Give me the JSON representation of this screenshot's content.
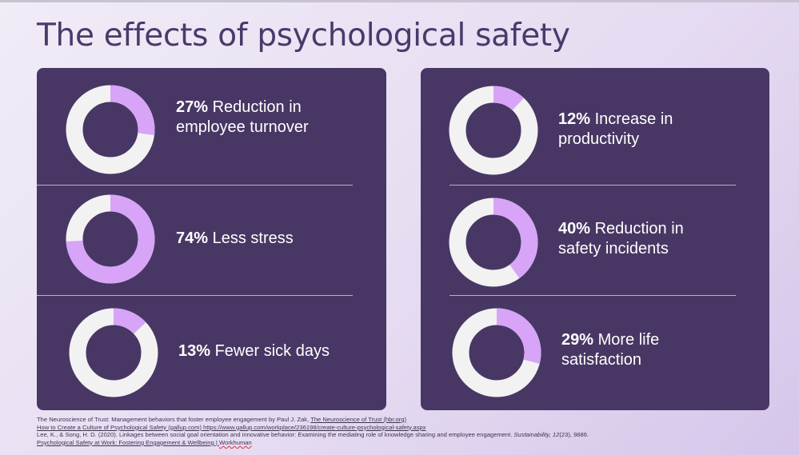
{
  "title": "The effects of psychological safety",
  "colors": {
    "panel": "#483764",
    "ring_bg": "#f2f2f2",
    "ring_fill": "#d7a4f8"
  },
  "chart_data": [
    {
      "type": "pie",
      "subtype": "donut",
      "value_pct": 27,
      "center_label": "27%",
      "highlight": "27%",
      "text": " Reduction in employee turnover"
    },
    {
      "type": "pie",
      "subtype": "donut",
      "value_pct": 74,
      "center_label": "74%",
      "highlight": "74%",
      "text": " Less stress"
    },
    {
      "type": "pie",
      "subtype": "donut",
      "value_pct": 13,
      "center_label": "13%",
      "highlight": "13%",
      "text": " Fewer sick days"
    },
    {
      "type": "pie",
      "subtype": "donut",
      "value_pct": 12,
      "center_label": "12%",
      "highlight": "12%",
      "text": " Increase in productivity"
    },
    {
      "type": "pie",
      "subtype": "donut",
      "value_pct": 40,
      "center_label": "40%",
      "highlight": "40%",
      "text": " Reduction in safety incidents"
    },
    {
      "type": "pie",
      "subtype": "donut",
      "value_pct": 29,
      "center_label": "29%",
      "highlight": "29%",
      "text": " More life satisfaction"
    }
  ],
  "references": {
    "r1_text": "The Neuroscience of Trust: Management behaviors that foster employee engagement by Paul J. Zak, ",
    "r1_link": "The Neuroscience of Trust (hbr.org)",
    "r2_link": "How to Create a Culture of Psychological Safety (gallup.com)",
    "r2_url": " https://www.gallup.com/workplace/236198/create-culture-psychological-safety.aspx",
    "r3_text": "Lee, K., & Song, H. D. (2020). Linkages between social goal orientation and innovative behavior: Examining the mediating role of knowledge sharing and employee engagement. ",
    "r3_journal": "Sustainability, 12",
    "r3_issue": "(23), 9886.",
    "r4_link_a": "Psychological Safety at Work: Fostering Engagement & Wellbeing | ",
    "r4_link_b": "Workhuman"
  }
}
